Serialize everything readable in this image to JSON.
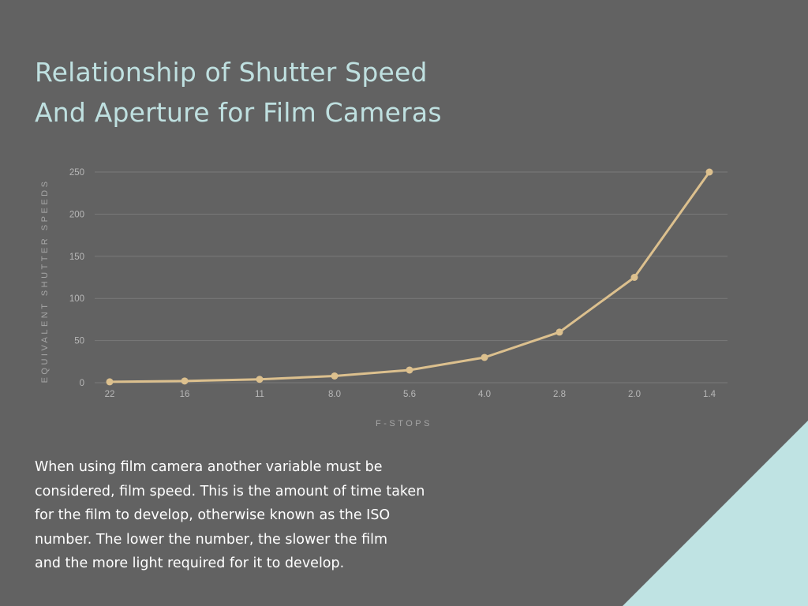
{
  "title_lines": [
    "Relationship of Shutter Speed",
    "And Aperture for Film Cameras"
  ],
  "description_lines": [
    "When using film camera another variable must be",
    "considered, film speed. This is the amount of time taken",
    "for the film to develop, otherwise known as the ISO",
    "number. The lower the number, the slower the film",
    "and the more light required for it to develop."
  ],
  "colors": {
    "background": "#626262",
    "title": "#bfe0e0",
    "line": "#dcc08e",
    "corner": "#bfe3e3",
    "grid": "#7a7a7a"
  },
  "chart_data": {
    "type": "line",
    "categories": [
      "22",
      "16",
      "11",
      "8.0",
      "5.6",
      "4.0",
      "2.8",
      "2.0",
      "1.4"
    ],
    "values": [
      1,
      2,
      4,
      8,
      15,
      30,
      60,
      125,
      250
    ],
    "xlabel": "F-STOPS",
    "ylabel": "EQUIVALENT SHUTTER SPEEDS",
    "ylim": [
      0,
      250
    ],
    "yticks": [
      "0",
      "50",
      "100",
      "150",
      "200",
      "250"
    ],
    "grid": true,
    "legend": "none"
  }
}
